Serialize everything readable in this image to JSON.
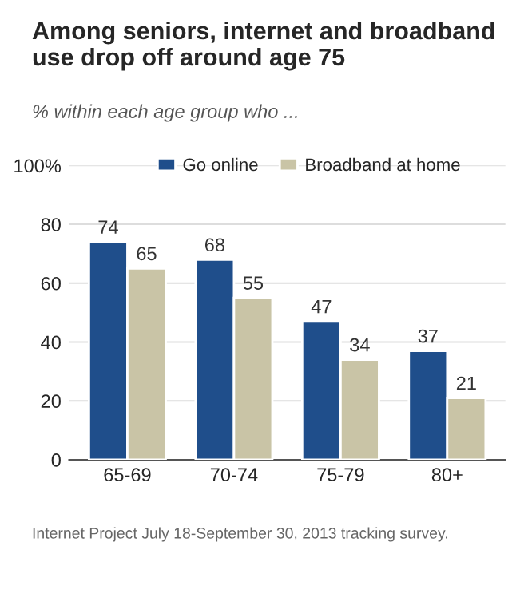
{
  "chart_data": {
    "type": "bar",
    "title": "Among seniors, internet and broadband use drop off around age 75",
    "subtitle": "% within each age group who ...",
    "categories": [
      "65-69",
      "70-74",
      "75-79",
      "80+"
    ],
    "series": [
      {
        "name": "Go online",
        "color": "#1f4e8b",
        "values": [
          74,
          68,
          47,
          37
        ]
      },
      {
        "name": "Broadband at home",
        "color": "#c9c4a6",
        "values": [
          65,
          55,
          34,
          21
        ]
      }
    ],
    "ylim": [
      0,
      100
    ],
    "yticks": [
      0,
      20,
      40,
      60,
      80,
      {
        "value": 100,
        "label": "100%"
      }
    ],
    "grid": "y",
    "legend": "top",
    "data_labels": true,
    "annotations": [
      "Internet Project July 18-September 30, 2013 tracking survey."
    ]
  }
}
